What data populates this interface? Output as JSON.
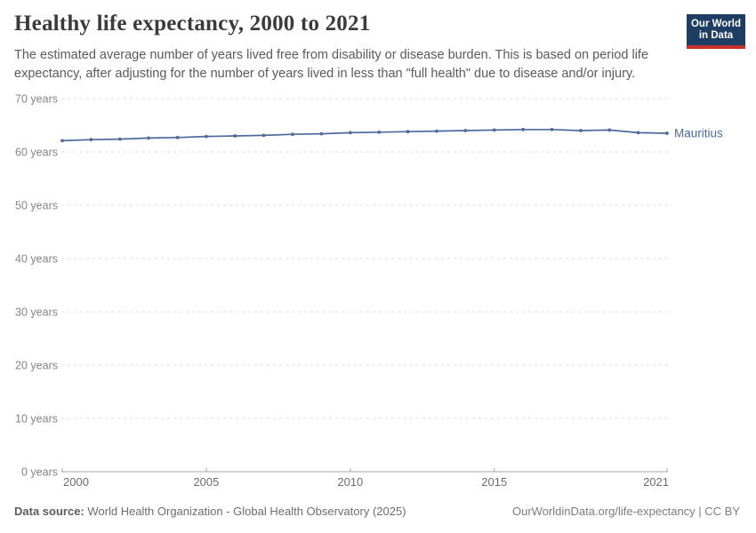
{
  "header": {
    "title": "Healthy life expectancy, 2000 to 2021",
    "subtitle": "The estimated average number of years lived free from disability or disease burden. This is based on period life expectancy, after adjusting for the number of years lived in less than \"full health\" due to disease and/or injury.",
    "logo": {
      "line1": "Our World",
      "line2": "in Data",
      "bg_color": "#1d3d63",
      "stripe_color": "#c7302b"
    }
  },
  "chart_data": {
    "type": "line",
    "title": "Healthy life expectancy, 2000 to 2021",
    "x": [
      2000,
      2001,
      2002,
      2003,
      2004,
      2005,
      2006,
      2007,
      2008,
      2009,
      2010,
      2011,
      2012,
      2013,
      2014,
      2015,
      2016,
      2017,
      2018,
      2019,
      2020,
      2021
    ],
    "series": [
      {
        "name": "Mauritius",
        "color": "#4c6a9c",
        "values": [
          62.1,
          62.3,
          62.4,
          62.6,
          62.7,
          62.9,
          63.0,
          63.1,
          63.3,
          63.4,
          63.6,
          63.7,
          63.8,
          63.9,
          64.0,
          64.1,
          64.2,
          64.2,
          64.0,
          64.1,
          63.6,
          63.5
        ]
      }
    ],
    "xlabel": "",
    "ylabel": "",
    "xlim": [
      2000,
      2021
    ],
    "ylim": [
      0,
      70
    ],
    "xticks": [
      2000,
      2005,
      2010,
      2015,
      2021
    ],
    "yticks": [
      0,
      10,
      20,
      30,
      40,
      50,
      60,
      70
    ],
    "ytick_labels": [
      "0 years",
      "10 years",
      "20 years",
      "30 years",
      "40 years",
      "50 years",
      "60 years",
      "70 years"
    ],
    "grid": "horizontal-dashed",
    "grid_color": "#dddddd",
    "axis_color": "#a5a5a5",
    "ytick_label_color": "#858585",
    "xtick_label_color": "#6d6d6d",
    "legend_position": "end-of-line"
  },
  "footer": {
    "source_label": "Data source:",
    "source_text": "World Health Organization - Global Health Observatory (2025)",
    "credit_text": "OurWorldinData.org/life-expectancy | CC BY"
  }
}
